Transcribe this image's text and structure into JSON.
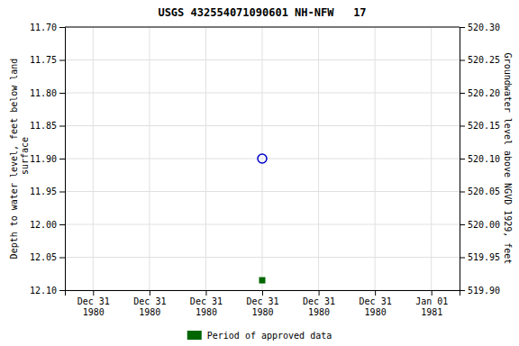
{
  "chart_data": {
    "type": "scatter",
    "title": "USGS 432554071090601 NH-NFW   17",
    "y_label": "Depth to water level, feet below land\n surface",
    "y2_label": "Groundwater level above NGVD 1929, feet",
    "categories": [
      "Dec 31\n1980",
      "Dec 31\n1980",
      "Dec 31\n1980",
      "Dec 31\n1980",
      "Dec 31\n1980",
      "Dec 31\n1980",
      "Jan 01\n1981"
    ],
    "series": [
      {
        "color": "#0000cc",
        "marker": "open-circle",
        "values": [
          null,
          null,
          null,
          11.9,
          null,
          null,
          null
        ]
      },
      {
        "name": "Period of approved data",
        "color": "#006600",
        "marker": "square",
        "values": [
          null,
          null,
          null,
          12.085,
          null,
          null,
          null
        ]
      }
    ],
    "ylim": [
      12.1,
      11.7
    ],
    "yticks": [
      {
        "value": 11.7,
        "label": "11.70"
      },
      11.75,
      {
        "value": 11.8,
        "label": "11.80"
      },
      11.85,
      {
        "value": 11.9,
        "label": "11.90"
      },
      11.95,
      {
        "value": 12.0,
        "label": "12.00"
      },
      12.05,
      {
        "value": 12.1,
        "label": "12.10"
      }
    ],
    "y2lim": [
      519.9,
      520.3
    ],
    "y2ticks": [
      {
        "value": 519.9,
        "label": "519.90"
      },
      519.95,
      {
        "value": 520.0,
        "label": "520.00"
      },
      520.05,
      {
        "value": 520.1,
        "label": "520.10"
      },
      520.15,
      {
        "value": 520.2,
        "label": "520.20"
      },
      520.25,
      {
        "value": 520.3,
        "label": "520.30"
      }
    ],
    "grid": true,
    "legend": "bottom"
  }
}
